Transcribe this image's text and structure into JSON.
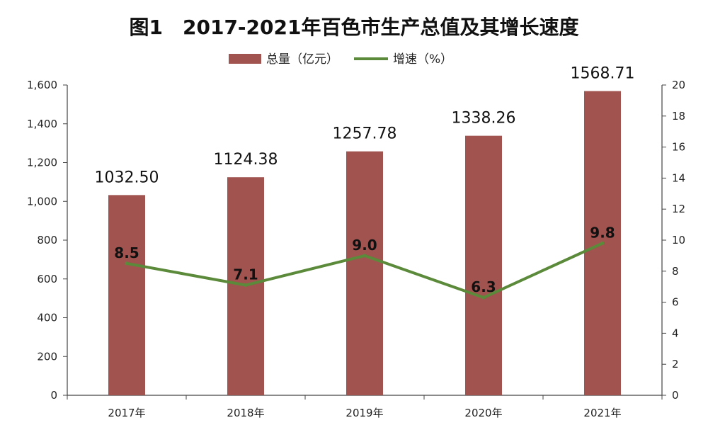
{
  "chart_data": {
    "type": "bar",
    "title": "图1　2017-2021年百色市生产总值及其增长速度",
    "categories": [
      "2017年",
      "2018年",
      "2019年",
      "2020年",
      "2021年"
    ],
    "series": [
      {
        "name": "总量（亿元）",
        "kind": "bar",
        "axis": "left",
        "color": "#A0534F",
        "values": [
          1032.5,
          1124.38,
          1257.78,
          1338.26,
          1568.71
        ],
        "labels": [
          "1032.50",
          "1124.38",
          "1257.78",
          "1338.26",
          "1568.71"
        ]
      },
      {
        "name": "增速（%）",
        "kind": "line",
        "axis": "right",
        "color": "#5B8A3A",
        "values": [
          8.5,
          7.1,
          9.0,
          6.3,
          9.8
        ],
        "labels": [
          "8.5",
          "7.1",
          "9.0",
          "6.3",
          "9.8"
        ]
      }
    ],
    "left_axis": {
      "ylim": [
        0,
        1600
      ],
      "ticks": [
        0,
        200,
        400,
        600,
        800,
        1000,
        1200,
        1400,
        1600
      ],
      "tick_labels": [
        "0",
        "200",
        "400",
        "600",
        "800",
        "1,000",
        "1,200",
        "1,400",
        "1,600"
      ]
    },
    "right_axis": {
      "ylim": [
        0,
        20
      ],
      "ticks": [
        0,
        2,
        4,
        6,
        8,
        10,
        12,
        14,
        16,
        18,
        20
      ],
      "tick_labels": [
        "0",
        "2",
        "4",
        "6",
        "8",
        "10",
        "12",
        "14",
        "16",
        "18",
        "20"
      ]
    },
    "legend": "top-center",
    "grid": false
  }
}
